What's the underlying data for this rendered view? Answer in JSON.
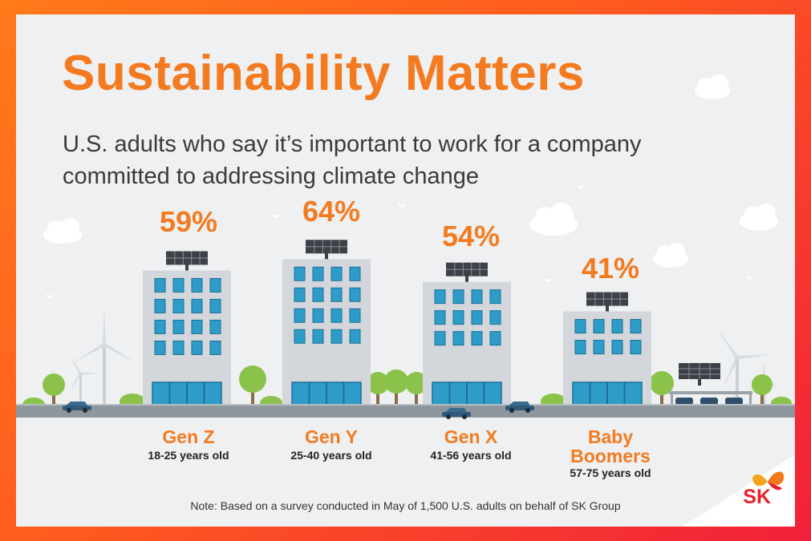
{
  "title": "Sustainability Matters",
  "subtitle": "U.S. adults who say it’s important to work for a company committed to addressing climate change",
  "note": "Note: Based on a survey conducted in May of 1,500 U.S. adults on behalf of SK Group",
  "logo": {
    "text": "SK"
  },
  "colors": {
    "accent": "#f47a20",
    "frame": "#ff6a1a",
    "brand_red": "#e8202a"
  },
  "chart_data": {
    "type": "bar",
    "title": "Sustainability Matters",
    "subtitle": "U.S. adults who say it’s important to work for a company committed to addressing climate change",
    "categories": [
      "Gen Z",
      "Gen Y",
      "Gen X",
      "Baby Boomers"
    ],
    "age_ranges": [
      "18-25 years old",
      "25-40 years old",
      "41-56 years old",
      "57-75 years old"
    ],
    "values": [
      59,
      64,
      54,
      41
    ],
    "value_labels": [
      "59%",
      "64%",
      "54%",
      "41%"
    ],
    "unit": "%",
    "ylim": [
      0,
      100
    ]
  }
}
